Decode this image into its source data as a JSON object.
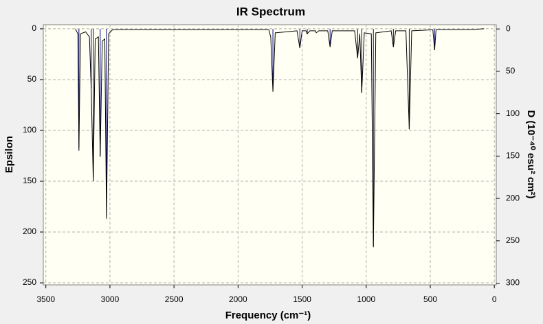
{
  "chart_data": {
    "type": "line",
    "title": "IR Spectrum",
    "xlabel": "Frequency (cm⁻¹)",
    "ylabel": "Epsilon",
    "y2label": "D (10⁻⁴⁰ esu² cm²)",
    "xlim": [
      3520,
      -15
    ],
    "ylim": [
      -4,
      252
    ],
    "y2lim": [
      -5,
      302
    ],
    "xticks": [
      3500,
      3000,
      2500,
      2000,
      1500,
      1000,
      500,
      0
    ],
    "yticks": [
      0,
      50,
      100,
      150,
      200,
      250
    ],
    "y2ticks": [
      0,
      50,
      100,
      150,
      200,
      250,
      300
    ],
    "grid": true,
    "series": [
      {
        "type": "line",
        "color": "#000000",
        "x": [
          3270,
          3250,
          3242,
          3230,
          3190,
          3160,
          3146,
          3130,
          3115,
          3090,
          3076,
          3060,
          3040,
          3027,
          3010,
          2980,
          2000,
          1760,
          1745,
          1728,
          1710,
          1540,
          1518,
          1500,
          1470,
          1460,
          1440,
          1395,
          1390,
          1370,
          1300,
          1282,
          1265,
          1090,
          1067,
          1050,
          1035,
          1015,
          960,
          944,
          925,
          805,
          788,
          770,
          690,
          664,
          645,
          480,
          466,
          455,
          200,
          80
        ],
        "values": [
          0,
          5,
          120,
          5,
          3,
          8,
          60,
          150,
          10,
          8,
          126,
          12,
          10,
          187,
          5,
          1,
          1,
          1,
          8,
          62,
          4,
          2,
          19,
          2,
          2,
          5,
          2,
          2,
          4,
          2,
          2,
          18,
          2,
          2,
          29,
          5,
          63,
          4,
          5,
          215,
          4,
          2,
          18,
          2,
          2,
          99,
          2,
          1,
          21,
          1,
          1,
          0
        ]
      },
      {
        "type": "stem",
        "axis": "y2",
        "color": "#00007f",
        "x": [
          3242,
          3146,
          3130,
          3076,
          3027,
          1728,
          1518,
          1460,
          1282,
          1067,
          1035,
          944,
          788,
          664,
          466
        ],
        "values": [
          140,
          70,
          175,
          150,
          220,
          70,
          22,
          6,
          21,
          34,
          75,
          256,
          21,
          118,
          25
        ]
      }
    ]
  }
}
